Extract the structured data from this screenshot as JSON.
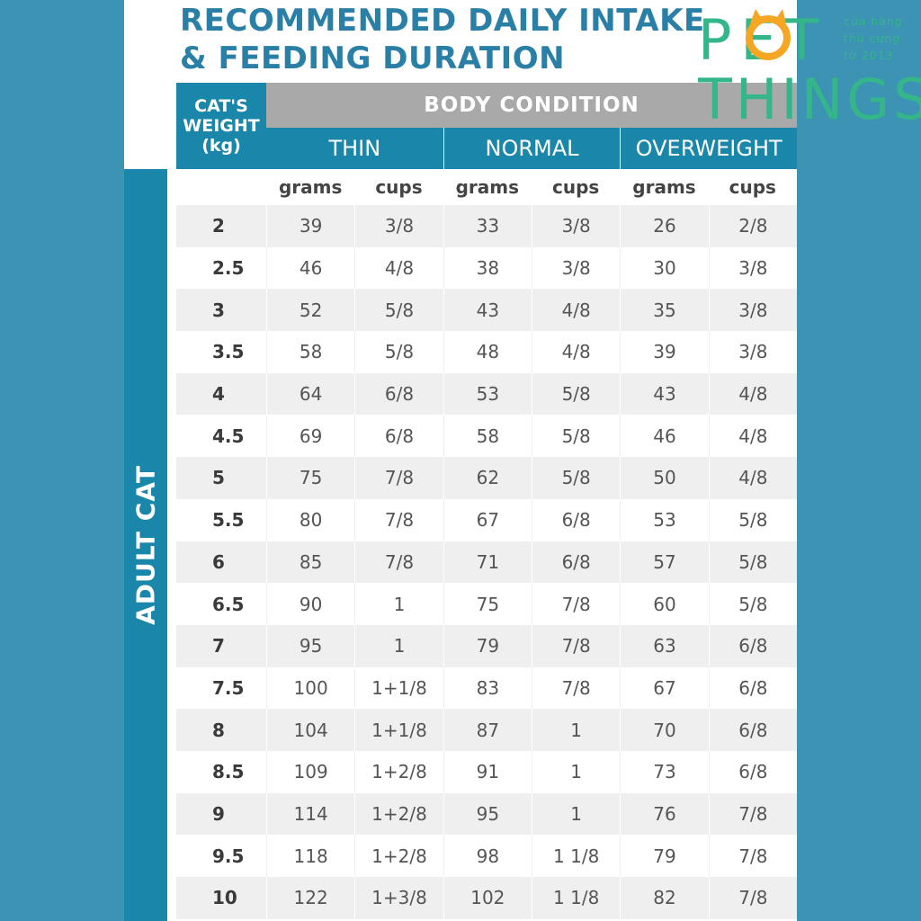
{
  "title": {
    "line1": "RECOMMENDED DAILY INTAKE",
    "line2": "& FEEDING DURATION"
  },
  "logo": {
    "word1": "PET",
    "word2": "THINGS",
    "tagline": [
      "cửa hàng",
      "thú cưng",
      "từ   2013"
    ]
  },
  "side_label": "ADULT CAT",
  "header": {
    "weight": [
      "CAT'S",
      "WEIGHT",
      "(kg)"
    ],
    "body_condition": "BODY CONDITION",
    "conditions": [
      "THIN",
      "NORMAL",
      "OVERWEIGHT"
    ],
    "units": [
      "grams",
      "cups",
      "grams",
      "cups",
      "grams",
      "cups"
    ]
  },
  "rows": [
    {
      "weight": "2",
      "values": [
        "39",
        "3/8",
        "33",
        "3/8",
        "26",
        "2/8"
      ]
    },
    {
      "weight": "2.5",
      "values": [
        "46",
        "4/8",
        "38",
        "3/8",
        "30",
        "3/8"
      ]
    },
    {
      "weight": "3",
      "values": [
        "52",
        "5/8",
        "43",
        "4/8",
        "35",
        "3/8"
      ]
    },
    {
      "weight": "3.5",
      "values": [
        "58",
        "5/8",
        "48",
        "4/8",
        "39",
        "3/8"
      ]
    },
    {
      "weight": "4",
      "values": [
        "64",
        "6/8",
        "53",
        "5/8",
        "43",
        "4/8"
      ]
    },
    {
      "weight": "4.5",
      "values": [
        "69",
        "6/8",
        "58",
        "5/8",
        "46",
        "4/8"
      ]
    },
    {
      "weight": "5",
      "values": [
        "75",
        "7/8",
        "62",
        "5/8",
        "50",
        "4/8"
      ]
    },
    {
      "weight": "5.5",
      "values": [
        "80",
        "7/8",
        "67",
        "6/8",
        "53",
        "5/8"
      ]
    },
    {
      "weight": "6",
      "values": [
        "85",
        "7/8",
        "71",
        "6/8",
        "57",
        "5/8"
      ]
    },
    {
      "weight": "6.5",
      "values": [
        "90",
        "1",
        "75",
        "7/8",
        "60",
        "5/8"
      ]
    },
    {
      "weight": "7",
      "values": [
        "95",
        "1",
        "79",
        "7/8",
        "63",
        "6/8"
      ]
    },
    {
      "weight": "7.5",
      "values": [
        "100",
        "1+1/8",
        "83",
        "7/8",
        "67",
        "6/8"
      ]
    },
    {
      "weight": "8",
      "values": [
        "104",
        "1+1/8",
        "87",
        "1",
        "70",
        "6/8"
      ]
    },
    {
      "weight": "8.5",
      "values": [
        "109",
        "1+2/8",
        "91",
        "1",
        "73",
        "6/8"
      ]
    },
    {
      "weight": "9",
      "values": [
        "114",
        "1+2/8",
        "95",
        "1",
        "76",
        "7/8"
      ]
    },
    {
      "weight": "9.5",
      "values": [
        "118",
        "1+2/8",
        "98",
        "1 1/8",
        "79",
        "7/8"
      ]
    },
    {
      "weight": "10",
      "values": [
        "122",
        "1+3/8",
        "102",
        "1 1/8",
        "82",
        "7/8"
      ]
    }
  ],
  "colors": {
    "background": "#3d93b3",
    "header_blue": "#1a87aa",
    "header_gray": "#a9a9a9",
    "title_blue": "#2a7fa7",
    "logo_green": "#34b58a",
    "logo_orange": "#f5a623"
  }
}
